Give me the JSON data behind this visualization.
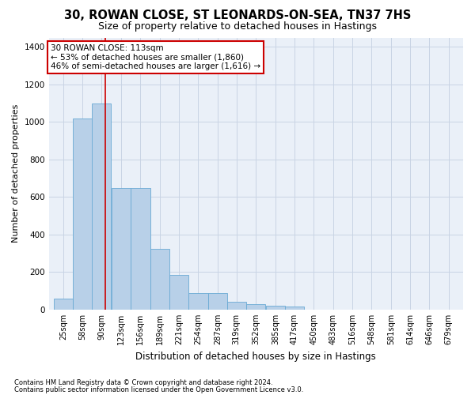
{
  "title": "30, ROWAN CLOSE, ST LEONARDS-ON-SEA, TN37 7HS",
  "subtitle": "Size of property relative to detached houses in Hastings",
  "xlabel": "Distribution of detached houses by size in Hastings",
  "ylabel": "Number of detached properties",
  "footnote1": "Contains HM Land Registry data © Crown copyright and database right 2024.",
  "footnote2": "Contains public sector information licensed under the Open Government Licence v3.0.",
  "annotation_line1": "30 ROWAN CLOSE: 113sqm",
  "annotation_line2": "← 53% of detached houses are smaller (1,860)",
  "annotation_line3": "46% of semi-detached houses are larger (1,616) →",
  "property_size": 113,
  "bar_edges": [
    25,
    58,
    90,
    123,
    156,
    189,
    221,
    254,
    287,
    319,
    352,
    385,
    417,
    450,
    483,
    516,
    548,
    581,
    614,
    646,
    679
  ],
  "bar_heights": [
    60,
    1020,
    1100,
    650,
    650,
    325,
    185,
    90,
    90,
    40,
    28,
    22,
    17,
    0,
    0,
    0,
    0,
    0,
    0,
    0
  ],
  "bar_color": "#b8d0e8",
  "bar_edge_color": "#6aaad4",
  "red_line_color": "#cc0000",
  "grid_color": "#c8d4e4",
  "bg_color": "#eaf0f8",
  "ylim": [
    0,
    1450
  ],
  "yticks": [
    0,
    200,
    400,
    600,
    800,
    1000,
    1200,
    1400
  ],
  "title_fontsize": 10.5,
  "subtitle_fontsize": 9,
  "ylabel_fontsize": 8,
  "xlabel_fontsize": 8.5,
  "tick_fontsize": 7,
  "annotation_fontsize": 7.5,
  "footnote_fontsize": 6,
  "annotation_box_color": "#cc0000",
  "figsize": [
    6.0,
    5.0
  ],
  "dpi": 100
}
